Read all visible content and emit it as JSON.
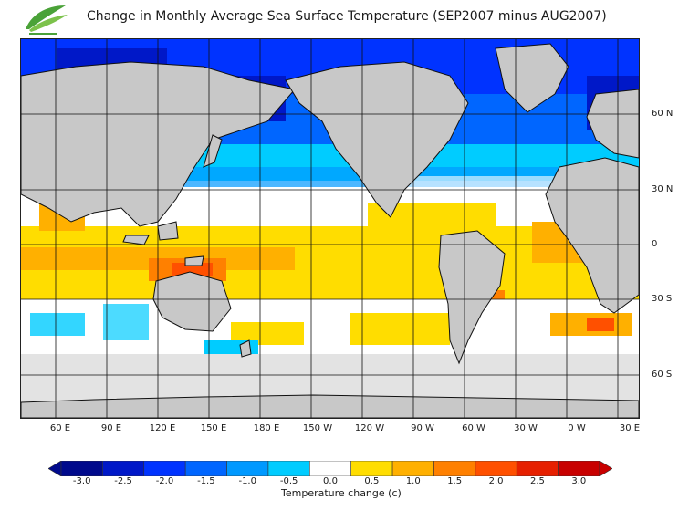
{
  "header": {
    "title": "Change in Monthly Average Sea Surface Temperature (SEP2007 minus AUG2007)",
    "logo_icon": "leaf-swoosh-logo-icon"
  },
  "map": {
    "latitude_labels": [
      "60 N",
      "30 N",
      "0",
      "30 S",
      "60 S"
    ],
    "longitude_labels": [
      "60 E",
      "90 E",
      "120 E",
      "150 E",
      "180 E",
      "150 W",
      "120 W",
      "90 W",
      "60 W",
      "30 W",
      "0 W",
      "30 E"
    ],
    "colors": {
      "land": "#c8c8c8",
      "ice": "#e3e3e3",
      "grid": "#111111",
      "coast": "#111111"
    }
  },
  "legend": {
    "title": "Temperature change  (c)",
    "ticks": [
      "-3.0",
      "-2.5",
      "-2.0",
      "-1.5",
      "-1.0",
      "-0.5",
      "0.0",
      "0.5",
      "1.0",
      "1.5",
      "2.0",
      "2.5",
      "3.0"
    ],
    "colors": [
      "#000a8c",
      "#0018c8",
      "#0033ff",
      "#0066ff",
      "#0099ff",
      "#00ccff",
      "#ffffff",
      "#ffdd00",
      "#ffb000",
      "#ff8000",
      "#ff5000",
      "#e62000",
      "#c80000"
    ]
  }
}
